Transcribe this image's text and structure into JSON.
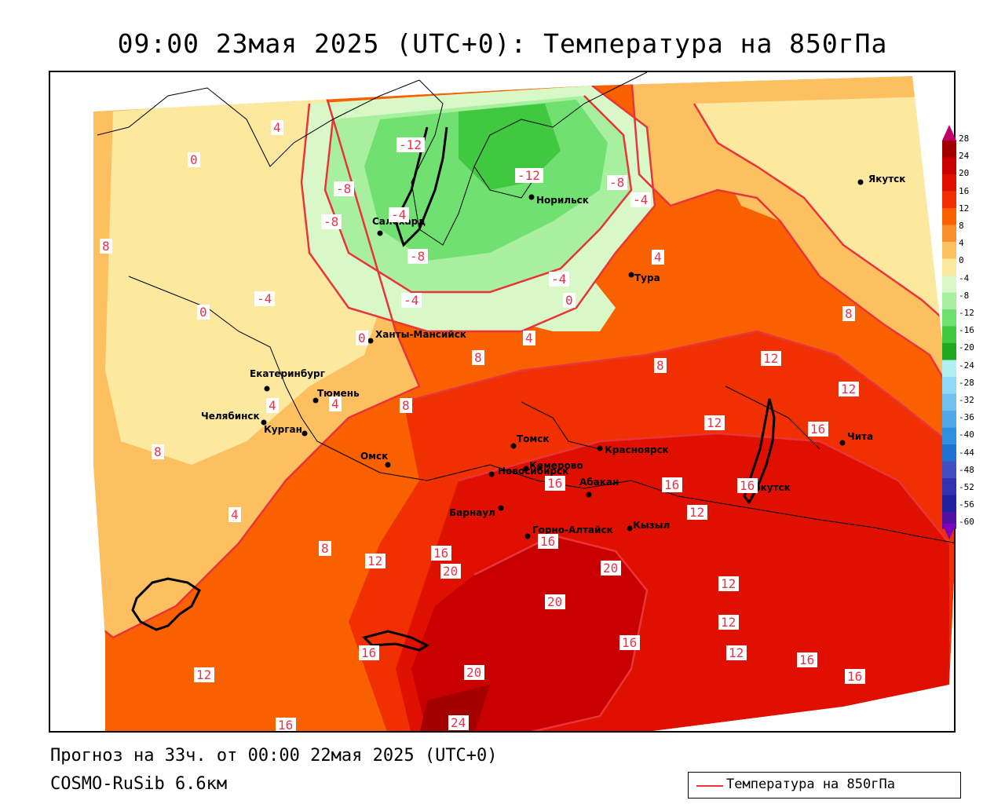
{
  "title": "09:00 23мая 2025 (UTC+0): Температура на 850гПа",
  "forecast_text": "Прогноз на 33ч. от 00:00 22мая 2025 (UTC+0)",
  "model_text": "COSMO-RuSib 6.6км",
  "legend": {
    "line_color": "#e8343a",
    "label": "Температура на 850гПа"
  },
  "colorbar": {
    "ticks": [
      "28",
      "24",
      "20",
      "16",
      "12",
      "8",
      "4",
      "0",
      "-4",
      "-8",
      "-12",
      "-16",
      "-20",
      "-24",
      "-28",
      "-32",
      "-36",
      "-40",
      "-44",
      "-48",
      "-52",
      "-56",
      "-60"
    ],
    "colors": [
      "#a50000",
      "#c80000",
      "#e01000",
      "#f03000",
      "#f86000",
      "#f89030",
      "#fcc060",
      "#fde8a0",
      "#d8f8c8",
      "#a8f0a0",
      "#70e070",
      "#40c840",
      "#20a820",
      "#b0f0f0",
      "#90d8f8",
      "#70c0f0",
      "#50a8e8",
      "#3090e0",
      "#2070d0",
      "#4050c0",
      "#3030b0",
      "#2020a0",
      "#5010a0"
    ]
  },
  "cities": [
    {
      "name": "Якутск"
    },
    {
      "name": "Норильск"
    },
    {
      "name": "Салехард"
    },
    {
      "name": "Тура"
    },
    {
      "name": "Ханты-Мансийск"
    },
    {
      "name": "Екатеринбург"
    },
    {
      "name": "Тюмень"
    },
    {
      "name": "Челябинск"
    },
    {
      "name": "Курган"
    },
    {
      "name": "Омск"
    },
    {
      "name": "Новосибирск"
    },
    {
      "name": "Томск"
    },
    {
      "name": "Красноярск"
    },
    {
      "name": "Кемерово"
    },
    {
      "name": "Абакан"
    },
    {
      "name": "Барнаул"
    },
    {
      "name": "Горно-Алтайск"
    },
    {
      "name": "Кызыл"
    },
    {
      "name": "Иркутск"
    },
    {
      "name": "Чита"
    }
  ],
  "isotherm_labels": [
    "4",
    "0",
    "-12",
    "-8",
    "-8",
    "-12",
    "-8",
    "-4",
    "-8",
    "-4",
    "4",
    "-4",
    "-4",
    "0",
    "0",
    "0",
    "4",
    "8",
    "8",
    "4",
    "8",
    "8",
    "12",
    "12",
    "12",
    "16",
    "16",
    "16",
    "12",
    "16",
    "16",
    "12",
    "20",
    "20",
    "20",
    "16",
    "12",
    "12",
    "12",
    "12",
    "16",
    "16",
    "16",
    "20",
    "16",
    "24",
    "16",
    "8",
    "-4",
    "4",
    "4",
    "8",
    "8"
  ]
}
